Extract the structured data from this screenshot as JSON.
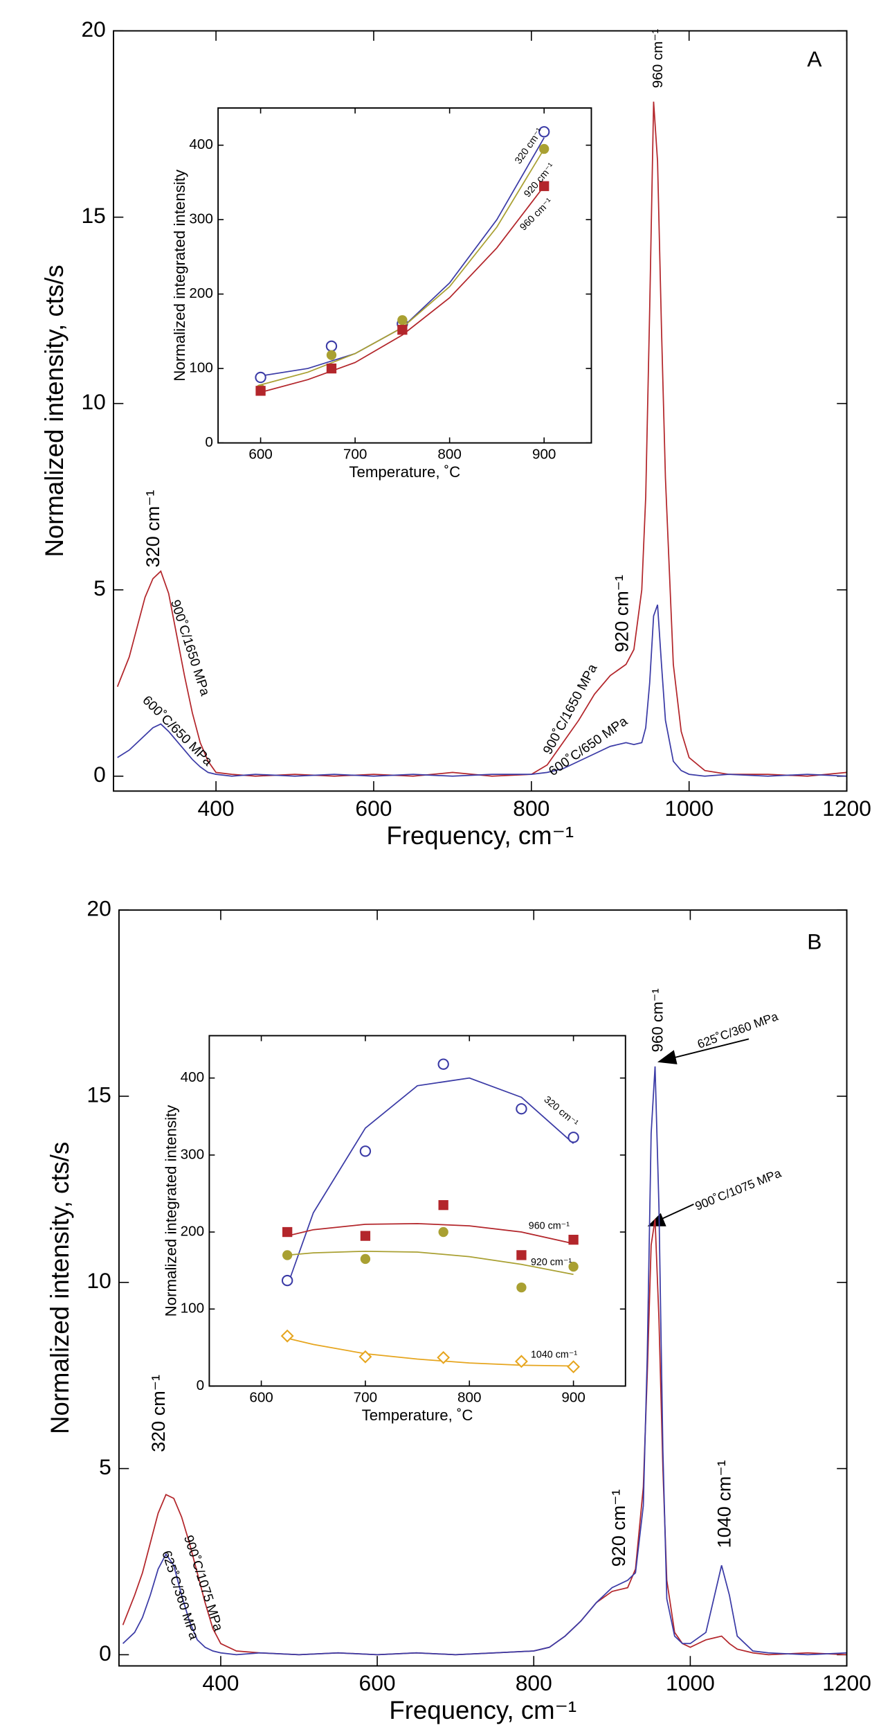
{
  "chart_data": [
    {
      "type": "line",
      "panel": "A",
      "x_label": "Frequency, cm⁻¹",
      "y_label": "Normalized intensity, cts/s",
      "xlim": [
        270,
        1200
      ],
      "ylim": [
        -0.4,
        20
      ],
      "xticks": [
        400,
        600,
        800,
        1000,
        1200
      ],
      "yticks": [
        0,
        5,
        10,
        15,
        20
      ],
      "x": [
        275,
        290,
        300,
        310,
        320,
        330,
        340,
        350,
        360,
        370,
        380,
        390,
        400,
        420,
        450,
        500,
        550,
        600,
        650,
        700,
        750,
        800,
        820,
        840,
        860,
        880,
        900,
        920,
        930,
        940,
        945,
        950,
        955,
        960,
        965,
        970,
        980,
        990,
        1000,
        1020,
        1050,
        1100,
        1150,
        1200
      ],
      "series": [
        {
          "name": "900˚C/1650 MPa",
          "color": "#b3262b",
          "values": [
            2.4,
            3.2,
            4.0,
            4.8,
            5.3,
            5.5,
            4.9,
            3.8,
            2.7,
            1.7,
            0.9,
            0.4,
            0.1,
            0.05,
            0.0,
            0.05,
            0.0,
            0.05,
            0.0,
            0.1,
            0.0,
            0.05,
            0.3,
            0.9,
            1.5,
            2.2,
            2.7,
            3.0,
            3.4,
            5.0,
            7.5,
            12.5,
            18.1,
            16.5,
            12.0,
            8.0,
            3.0,
            1.2,
            0.5,
            0.15,
            0.05,
            0.05,
            0.0,
            0.1
          ]
        },
        {
          "name": "600˚C/650 MPa",
          "color": "#3b3ba6",
          "values": [
            0.5,
            0.7,
            0.9,
            1.1,
            1.3,
            1.4,
            1.2,
            0.95,
            0.7,
            0.45,
            0.25,
            0.1,
            0.05,
            0.0,
            0.05,
            0.0,
            0.05,
            0.0,
            0.05,
            0.0,
            0.05,
            0.05,
            0.1,
            0.2,
            0.4,
            0.6,
            0.8,
            0.9,
            0.85,
            0.9,
            1.3,
            2.5,
            4.3,
            4.6,
            3.0,
            1.5,
            0.4,
            0.15,
            0.05,
            0.0,
            0.05,
            0.0,
            0.05,
            0.0
          ]
        }
      ],
      "annotations": [
        "320 cm⁻¹",
        "920 cm⁻¹",
        "960 cm⁻¹"
      ]
    },
    {
      "type": "scatter",
      "x_label": "Temperature, ˚C",
      "y_label": "Normalized integrated intensity",
      "xlim": [
        555,
        950
      ],
      "ylim": [
        0,
        450
      ],
      "xticks": [
        600,
        700,
        800,
        900
      ],
      "yticks": [
        0,
        100,
        200,
        300,
        400
      ],
      "x": [
        600,
        675,
        750,
        900
      ],
      "fit_x": [
        600,
        650,
        700,
        750,
        800,
        850,
        900
      ],
      "series": [
        {
          "name": "320 cm⁻¹",
          "color": "#3b3ba6",
          "marker": "open-circle",
          "values": [
            88,
            130,
            160,
            418
          ],
          "fit": [
            90,
            100,
            120,
            155,
            215,
            300,
            410
          ]
        },
        {
          "name": "920 cm⁻¹",
          "color": "#a9a032",
          "marker": "circle",
          "values": [
            72,
            118,
            165,
            395
          ],
          "fit": [
            78,
            95,
            120,
            155,
            210,
            290,
            395
          ]
        },
        {
          "name": "960 cm⁻¹",
          "color": "#b3262b",
          "marker": "square",
          "values": [
            70,
            100,
            152,
            345
          ],
          "fit": [
            68,
            85,
            108,
            145,
            195,
            262,
            345
          ]
        }
      ]
    },
    {
      "type": "line",
      "panel": "B",
      "x_label": "Frequency, cm⁻¹",
      "y_label": "Normalized intensity, cts/s",
      "xlim": [
        270,
        1200
      ],
      "ylim": [
        -0.3,
        20
      ],
      "xticks": [
        400,
        600,
        800,
        1000,
        1200
      ],
      "yticks": [
        0,
        5,
        10,
        15,
        20
      ],
      "x": [
        275,
        290,
        300,
        310,
        320,
        330,
        340,
        350,
        360,
        370,
        380,
        390,
        400,
        420,
        450,
        500,
        550,
        600,
        650,
        700,
        750,
        800,
        820,
        840,
        860,
        880,
        900,
        920,
        930,
        940,
        945,
        950,
        955,
        960,
        965,
        970,
        980,
        990,
        1000,
        1020,
        1030,
        1040,
        1050,
        1060,
        1080,
        1100,
        1150,
        1200
      ],
      "series": [
        {
          "name": "900˚C/1075 MPa",
          "color": "#b3262b",
          "values": [
            0.8,
            1.6,
            2.2,
            3.0,
            3.8,
            4.3,
            4.2,
            3.7,
            3.0,
            2.2,
            1.4,
            0.7,
            0.3,
            0.1,
            0.05,
            0.0,
            0.05,
            0.0,
            0.05,
            0.0,
            0.05,
            0.1,
            0.2,
            0.5,
            0.9,
            1.4,
            1.7,
            1.8,
            2.3,
            4.5,
            7.5,
            11.0,
            11.7,
            9.0,
            5.0,
            2.0,
            0.6,
            0.3,
            0.2,
            0.4,
            0.45,
            0.5,
            0.3,
            0.15,
            0.05,
            0.0,
            0.05,
            0.0
          ]
        },
        {
          "name": "625˚C/360 MPa",
          "color": "#3b3ba6",
          "values": [
            0.3,
            0.6,
            1.0,
            1.6,
            2.3,
            2.7,
            2.4,
            1.6,
            0.9,
            0.4,
            0.2,
            0.1,
            0.05,
            0.0,
            0.05,
            0.0,
            0.05,
            0.0,
            0.05,
            0.0,
            0.05,
            0.1,
            0.2,
            0.5,
            0.9,
            1.4,
            1.8,
            2.0,
            2.2,
            4.0,
            8.0,
            14.0,
            15.8,
            12.0,
            5.5,
            1.5,
            0.5,
            0.3,
            0.3,
            0.6,
            1.5,
            2.4,
            1.6,
            0.5,
            0.1,
            0.05,
            0.0,
            0.05
          ]
        }
      ],
      "annotations": [
        "320 cm⁻¹",
        "920 cm⁻¹",
        "960 cm⁻¹",
        "1040 cm⁻¹"
      ]
    },
    {
      "type": "scatter",
      "x_label": "Temperature, ˚C",
      "y_label": "Normalized integrated intensity",
      "xlim": [
        550,
        950
      ],
      "ylim": [
        0,
        455
      ],
      "xticks": [
        600,
        700,
        800,
        900
      ],
      "yticks": [
        0,
        100,
        200,
        300,
        400
      ],
      "x": [
        625,
        700,
        775,
        850,
        900
      ],
      "fit_x": [
        625,
        650,
        700,
        750,
        800,
        850,
        900
      ],
      "series": [
        {
          "name": "320 cm⁻¹",
          "color": "#3b3ba6",
          "marker": "open-circle",
          "values": [
            137,
            305,
            418,
            360,
            323
          ],
          "fit": [
            130,
            225,
            335,
            390,
            400,
            375,
            315
          ]
        },
        {
          "name": "960 cm⁻¹",
          "color": "#b3262b",
          "marker": "square",
          "values": [
            200,
            195,
            235,
            170,
            190
          ],
          "fit": [
            195,
            203,
            210,
            211,
            208,
            200,
            185
          ]
        },
        {
          "name": "920 cm⁻¹",
          "color": "#a9a032",
          "marker": "circle",
          "values": [
            170,
            165,
            200,
            128,
            155
          ],
          "fit": [
            170,
            173,
            175,
            174,
            168,
            158,
            145
          ]
        },
        {
          "name": "1040 cm⁻¹",
          "color": "#e6a51e",
          "marker": "open-diamond",
          "values": [
            65,
            38,
            37,
            32,
            25
          ],
          "fit": [
            62,
            54,
            42,
            35,
            30,
            27,
            26
          ]
        }
      ]
    }
  ]
}
